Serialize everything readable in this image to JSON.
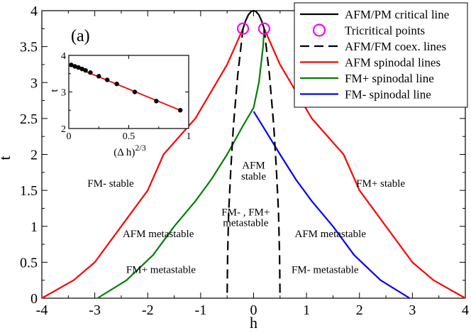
{
  "chart_data": [
    {
      "type": "line",
      "title": "",
      "xlabel": "h",
      "ylabel": "t",
      "xlim": [
        -4,
        4
      ],
      "ylim": [
        0,
        4
      ],
      "xticks": [
        -4,
        -3,
        -2,
        -1,
        0,
        1,
        2,
        3,
        4
      ],
      "yticks": [
        0,
        0.5,
        1,
        1.5,
        2,
        2.5,
        3,
        3.5,
        4
      ],
      "grid": false,
      "legend_position": "top-right",
      "series": [
        {
          "name": "AFM/PM critical line",
          "color": "#000000",
          "style": "solid",
          "points": [
            [
              -0.2,
              3.75
            ],
            [
              -0.15,
              3.86
            ],
            [
              -0.1,
              3.94
            ],
            [
              -0.05,
              3.985
            ],
            [
              0,
              4.0
            ],
            [
              0.05,
              3.985
            ],
            [
              0.1,
              3.94
            ],
            [
              0.15,
              3.86
            ],
            [
              0.2,
              3.75
            ]
          ]
        },
        {
          "name": "Tricritical points",
          "color": "#ff00ff",
          "style": "marker",
          "points": [
            [
              -0.2,
              3.75
            ],
            [
              0.2,
              3.75
            ]
          ]
        },
        {
          "name": "AFM/FM coex. lines",
          "color": "#000000",
          "style": "dashed",
          "segments": [
            [
              [
                -0.2,
                3.75
              ],
              [
                -0.3,
                3.1
              ],
              [
                -0.38,
                2.4
              ],
              [
                -0.43,
                1.8
              ],
              [
                -0.47,
                1.2
              ],
              [
                -0.49,
                0.6
              ],
              [
                -0.5,
                0.0
              ]
            ],
            [
              [
                0.2,
                3.75
              ],
              [
                0.3,
                3.1
              ],
              [
                0.38,
                2.4
              ],
              [
                0.43,
                1.8
              ],
              [
                0.47,
                1.2
              ],
              [
                0.49,
                0.6
              ],
              [
                0.5,
                0.0
              ]
            ]
          ]
        },
        {
          "name": "AFM spinodal lines",
          "color": "#ff0000",
          "style": "solid",
          "segments": [
            [
              [
                -4,
                0
              ],
              [
                -3.4,
                0.25
              ],
              [
                -3.0,
                0.5
              ],
              [
                -2.5,
                1.0
              ],
              [
                -2.0,
                1.5
              ],
              [
                -1.7,
                2.0
              ],
              [
                -1.1,
                2.5
              ],
              [
                -0.5,
                3.25
              ],
              [
                -0.2,
                3.75
              ]
            ],
            [
              [
                0.2,
                3.75
              ],
              [
                0.5,
                3.25
              ],
              [
                1.1,
                2.5
              ],
              [
                1.7,
                2.0
              ],
              [
                2.0,
                1.5
              ],
              [
                2.5,
                1.0
              ],
              [
                3.0,
                0.5
              ],
              [
                3.4,
                0.25
              ],
              [
                4,
                0
              ]
            ]
          ]
        },
        {
          "name": "FM+ spinodal line",
          "color": "#008000",
          "style": "solid",
          "points": [
            [
              -2.95,
              0
            ],
            [
              -2.4,
              0.25
            ],
            [
              -1.9,
              0.6
            ],
            [
              -1.5,
              1.0
            ],
            [
              -1.1,
              1.35
            ],
            [
              -0.8,
              1.65
            ],
            [
              -0.5,
              2.0
            ],
            [
              -0.2,
              2.4
            ],
            [
              0.0,
              2.65
            ],
            [
              0.1,
              3.0
            ],
            [
              0.18,
              3.5
            ],
            [
              0.2,
              3.75
            ]
          ]
        },
        {
          "name": "FM- spinodal line",
          "color": "#0000ff",
          "style": "solid",
          "points": [
            [
              0.0,
              2.6
            ],
            [
              0.25,
              2.3
            ],
            [
              0.5,
              2.0
            ],
            [
              0.8,
              1.65
            ],
            [
              1.1,
              1.35
            ],
            [
              1.5,
              1.0
            ],
            [
              1.9,
              0.6
            ],
            [
              2.4,
              0.25
            ],
            [
              2.95,
              0
            ]
          ]
        }
      ],
      "annotations": [
        {
          "text": "FM- stable",
          "x": -2.7,
          "y": 1.6
        },
        {
          "text": "FM+ stable",
          "x": 2.4,
          "y": 1.6
        },
        {
          "text": "AFM",
          "x": 0.0,
          "y": 1.85
        },
        {
          "text": "stable",
          "x": 0.0,
          "y": 1.7
        },
        {
          "text": "FM- , FM+",
          "x": -0.15,
          "y": 1.2
        },
        {
          "text": "metastable",
          "x": -0.15,
          "y": 1.05
        },
        {
          "text": "AFM metastable",
          "x": -1.8,
          "y": 0.9
        },
        {
          "text": "AFM metastable",
          "x": 1.45,
          "y": 0.9
        },
        {
          "text": "FM+ metastable",
          "x": -1.75,
          "y": 0.4
        },
        {
          "text": "FM- metastable",
          "x": 1.35,
          "y": 0.4
        }
      ]
    },
    {
      "type": "line",
      "title": "(a)",
      "xlabel": "(Δ h)",
      "xlabel_superscript": "2/3",
      "ylabel": "t",
      "xlim": [
        0,
        1
      ],
      "ylim": [
        2,
        4
      ],
      "xticks": [
        0,
        0.5,
        1
      ],
      "yticks": [
        2,
        3,
        4
      ],
      "series": [
        {
          "name": "",
          "color": "#ff0000",
          "style": "solid",
          "points": [
            [
              0.0,
              3.75
            ],
            [
              0.93,
              2.5
            ]
          ]
        },
        {
          "name": "",
          "color": "#000000",
          "style": "marker",
          "points": [
            [
              0.02,
              3.74
            ],
            [
              0.05,
              3.7
            ],
            [
              0.08,
              3.67
            ],
            [
              0.11,
              3.63
            ],
            [
              0.14,
              3.59
            ],
            [
              0.18,
              3.53
            ],
            [
              0.25,
              3.43
            ],
            [
              0.32,
              3.33
            ],
            [
              0.4,
              3.22
            ],
            [
              0.55,
              3.0
            ],
            [
              0.73,
              2.75
            ],
            [
              0.93,
              2.5
            ]
          ]
        }
      ]
    }
  ]
}
